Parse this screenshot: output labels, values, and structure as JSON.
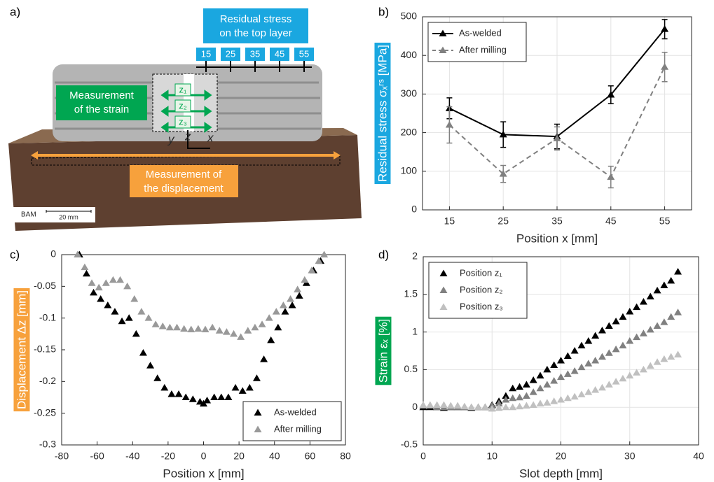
{
  "photo": {
    "panel_label": "a)",
    "stress_box": [
      "Residual stress",
      "on the top layer"
    ],
    "positions": [
      15,
      25,
      35,
      45,
      55
    ],
    "strain_box": [
      "Measurement",
      "of the strain"
    ],
    "displacement_box": [
      "Measurement of",
      "the displacement"
    ],
    "gauges": [
      "z₁",
      "z₂",
      "z₃"
    ],
    "axes": [
      "y",
      "z",
      "x"
    ],
    "logo": "BAM",
    "scale_bar": "20 mm"
  },
  "chart_data": [
    {
      "type": "line",
      "panel_label": "b)",
      "xlabel": "Position x [mm]",
      "ylabel": "Residual stress σₓʳˢ [MPa]",
      "ylabel_color": "#1aa7e0",
      "x": [
        15,
        25,
        35,
        45,
        55
      ],
      "xlim": [
        10,
        60
      ],
      "xticks": [
        15,
        25,
        35,
        45,
        55
      ],
      "ylim": [
        0,
        500
      ],
      "yticks": [
        0,
        100,
        200,
        300,
        400,
        500
      ],
      "grid": true,
      "legend": "upper-left",
      "series": [
        {
          "name": "As-welded",
          "color": "#000000",
          "linestyle": "solid",
          "values": [
            263,
            195,
            190,
            298,
            468
          ],
          "errors": [
            27,
            33,
            32,
            23,
            25
          ]
        },
        {
          "name": "After milling",
          "color": "#808080",
          "linestyle": "dashed",
          "values": [
            220,
            93,
            185,
            85,
            370
          ],
          "errors": [
            47,
            22,
            30,
            28,
            38
          ]
        }
      ]
    },
    {
      "type": "scatter",
      "panel_label": "c)",
      "xlabel": "Position x [mm]",
      "ylabel": "Displacement Δz [mm]",
      "ylabel_color": "#f7a13c",
      "xlim": [
        -80,
        80
      ],
      "xticks": [
        -80,
        -60,
        -40,
        -20,
        0,
        20,
        40,
        60,
        80
      ],
      "ylim": [
        -0.3,
        0
      ],
      "yticks": [
        -0.3,
        -0.25,
        -0.2,
        -0.15,
        -0.1,
        -0.05,
        0
      ],
      "grid": false,
      "legend": "lower-right",
      "series": [
        {
          "name": "As-welded",
          "color": "#000000",
          "x": [
            -70,
            -66,
            -62,
            -58,
            -54,
            -50,
            -46,
            -42,
            -38,
            -34,
            -30,
            -26,
            -22,
            -18,
            -14,
            -10,
            -6,
            -2,
            0,
            2,
            6,
            10,
            14,
            18,
            22,
            26,
            30,
            34,
            38,
            42,
            46,
            50,
            54,
            58,
            62,
            66
          ],
          "values": [
            0,
            -0.03,
            -0.06,
            -0.07,
            -0.08,
            -0.09,
            -0.105,
            -0.1,
            -0.125,
            -0.155,
            -0.175,
            -0.195,
            -0.21,
            -0.22,
            -0.22,
            -0.225,
            -0.228,
            -0.232,
            -0.235,
            -0.23,
            -0.225,
            -0.225,
            -0.225,
            -0.21,
            -0.215,
            -0.21,
            -0.195,
            -0.165,
            -0.135,
            -0.115,
            -0.09,
            -0.08,
            -0.065,
            -0.045,
            -0.025,
            -0.01
          ]
        },
        {
          "name": "After milling",
          "color": "#999999",
          "x": [
            -71,
            -67,
            -63,
            -59,
            -55,
            -51,
            -47,
            -43,
            -39,
            -35,
            -31,
            -27,
            -23,
            -19,
            -15,
            -11,
            -7,
            -3,
            1,
            5,
            9,
            13,
            17,
            21,
            25,
            29,
            33,
            37,
            41,
            45,
            49,
            53,
            57,
            61,
            65,
            68
          ],
          "values": [
            0,
            -0.02,
            -0.045,
            -0.052,
            -0.045,
            -0.04,
            -0.04,
            -0.05,
            -0.07,
            -0.09,
            -0.1,
            -0.11,
            -0.113,
            -0.115,
            -0.115,
            -0.117,
            -0.118,
            -0.117,
            -0.118,
            -0.115,
            -0.12,
            -0.122,
            -0.125,
            -0.13,
            -0.12,
            -0.115,
            -0.11,
            -0.1,
            -0.09,
            -0.08,
            -0.07,
            -0.055,
            -0.04,
            -0.025,
            -0.01,
            0
          ]
        }
      ]
    },
    {
      "type": "scatter",
      "panel_label": "d)",
      "xlabel": "Slot depth [mm]",
      "ylabel": "Strain εₓ [%]",
      "ylabel_color": "#00a651",
      "x": [
        0,
        1,
        2,
        3,
        4,
        5,
        6,
        7,
        8,
        9,
        10,
        11,
        12,
        13,
        14,
        15,
        16,
        17,
        18,
        19,
        20,
        21,
        22,
        23,
        24,
        25,
        26,
        27,
        28,
        29,
        30,
        31,
        32,
        33,
        34,
        35,
        36,
        37
      ],
      "xlim": [
        0,
        40
      ],
      "xticks": [
        0,
        10,
        20,
        30,
        40
      ],
      "ylim": [
        -0.5,
        2
      ],
      "yticks": [
        -0.5,
        0,
        0.5,
        1,
        1.5,
        2
      ],
      "grid": true,
      "legend": "upper-left",
      "series": [
        {
          "name": "Position z₁",
          "color": "#000000",
          "values": [
            0,
            0,
            0,
            -0.01,
            0,
            0,
            0,
            -0.01,
            0,
            0,
            0.03,
            0.08,
            0.15,
            0.25,
            0.27,
            0.3,
            0.36,
            0.42,
            0.5,
            0.56,
            0.62,
            0.68,
            0.75,
            0.82,
            0.88,
            0.95,
            1.02,
            1.08,
            1.14,
            1.2,
            1.27,
            1.33,
            1.4,
            1.47,
            1.55,
            1.62,
            1.68,
            1.8
          ]
        },
        {
          "name": "Position z₂",
          "color": "#808080",
          "values": [
            0.02,
            0.02,
            0,
            0,
            0,
            0,
            0,
            0,
            0,
            0,
            0.02,
            0.05,
            0.1,
            0.12,
            0.13,
            0.15,
            0.2,
            0.25,
            0.3,
            0.35,
            0.4,
            0.44,
            0.48,
            0.53,
            0.58,
            0.62,
            0.67,
            0.72,
            0.77,
            0.82,
            0.88,
            0.93,
            0.98,
            1.03,
            1.08,
            1.13,
            1.2,
            1.26
          ]
        },
        {
          "name": "Position z₃",
          "color": "#c0c0c0",
          "values": [
            0.03,
            0.03,
            0.03,
            0.03,
            0.02,
            0.02,
            0.01,
            0,
            0,
            0,
            -0.02,
            -0.01,
            0,
            0,
            0.01,
            0.02,
            0.03,
            0.05,
            0.06,
            0.08,
            0.1,
            0.12,
            0.14,
            0.17,
            0.2,
            0.23,
            0.26,
            0.3,
            0.34,
            0.38,
            0.42,
            0.46,
            0.5,
            0.55,
            0.6,
            0.64,
            0.67,
            0.7
          ]
        }
      ]
    }
  ]
}
